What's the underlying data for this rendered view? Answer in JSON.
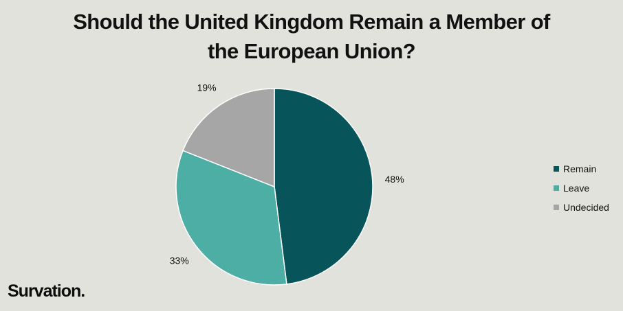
{
  "chart_data": {
    "type": "pie",
    "title": "Should the United Kingdom Remain a Member of the European Union?",
    "title_lines": [
      "Should the United Kingdom Remain a Member of",
      "the European Union?"
    ],
    "slices": [
      {
        "label": "Remain",
        "value": 48,
        "display": "48%",
        "color": "#07555a"
      },
      {
        "label": "Leave",
        "value": 33,
        "display": "33%",
        "color": "#4daea6"
      },
      {
        "label": "Undecided",
        "value": 19,
        "display": "19%",
        "color": "#a6a6a6"
      }
    ],
    "start": "12 o'clock",
    "direction": "clockwise",
    "legend_placement": "right"
  },
  "brand": {
    "logo_text": "Survation."
  },
  "colors": {
    "background": "#e2e2dc",
    "slice_border": "#ffffff"
  }
}
